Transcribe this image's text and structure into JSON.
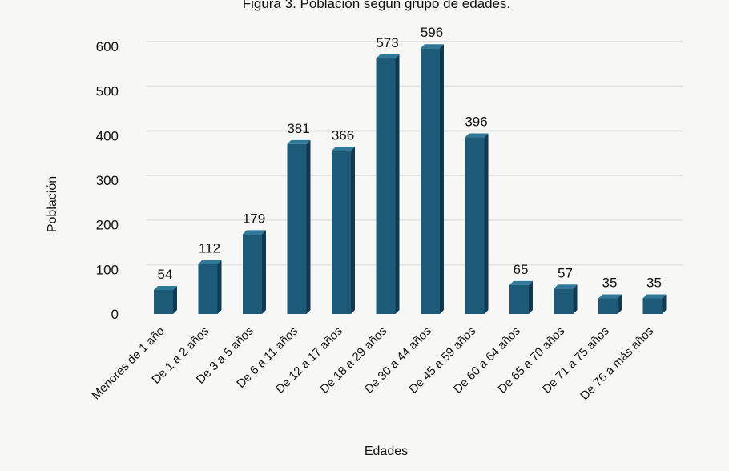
{
  "chart_data": {
    "type": "bar",
    "title": "Figura 3. Población según grupo de edades.",
    "xlabel": "Edades",
    "ylabel": "Población",
    "categories": [
      "Menores de 1 año",
      "De 1 a 2 años",
      "De 3 a 5 años",
      "De 6 a 11 años",
      "De 12 a 17 años",
      "De 18 a 29 años",
      "De 30 a 44 años",
      "De 45 a 59 años",
      "De 60 a 64 años",
      "De 65 a 70 años",
      "De 71 a 75 años",
      "De 76 a más años"
    ],
    "values": [
      54,
      112,
      179,
      381,
      366,
      573,
      596,
      396,
      65,
      57,
      35,
      35
    ],
    "ylim": [
      0,
      600
    ],
    "yticks": [
      0,
      100,
      200,
      300,
      400,
      500,
      600
    ],
    "grid": true,
    "legend": "none",
    "colors": {
      "bar_front": "#1d5a78",
      "bar_side": "#0f3a52",
      "bar_top": "#2f7898",
      "grid": "#e1e1e1"
    }
  }
}
